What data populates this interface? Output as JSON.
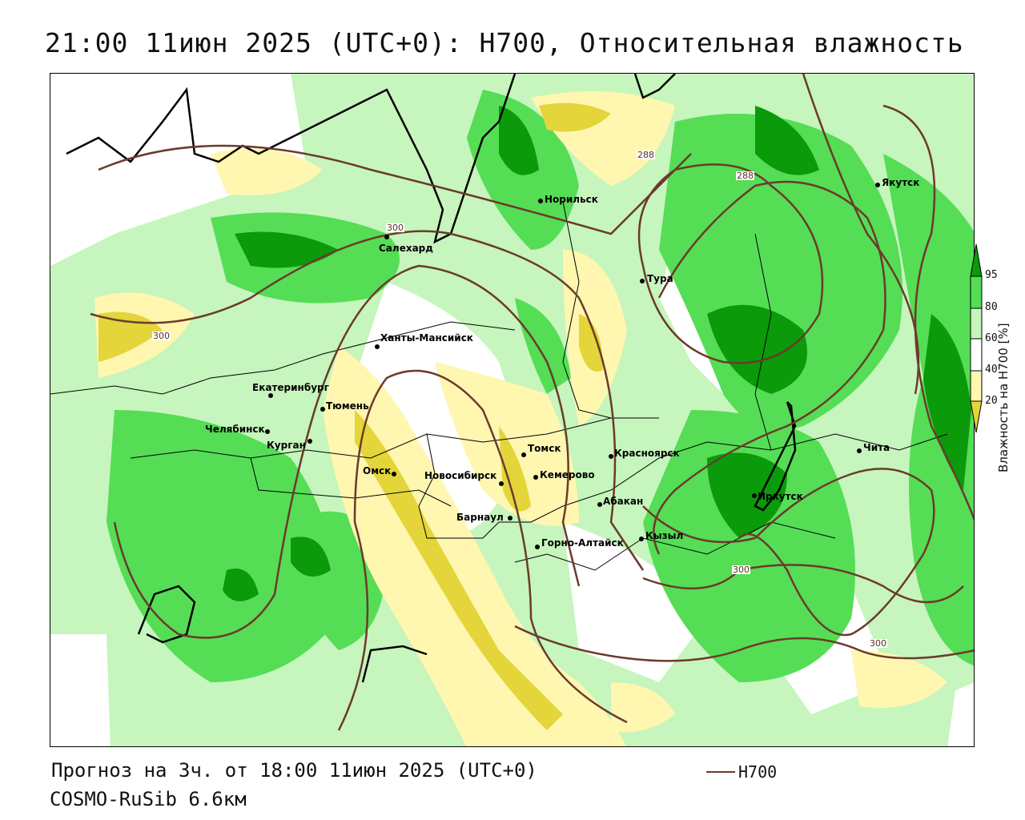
{
  "title": "21:00 11июн 2025 (UTC+0): H700, Относительная влажность",
  "cities": [
    "Салехард",
    "Норильск",
    "Якутск",
    "Тура",
    "Ханты-Мансийск",
    "Екатеринбург",
    "Тюмень",
    "Челябинск",
    "Курган",
    "Омск",
    "Новосибирск",
    "Томск",
    "Кемерово",
    "Красноярск",
    "Барнаул",
    "Абакан",
    "Иркутск",
    "Чита",
    "Кызыл",
    "Горно-Алтайск"
  ],
  "contour_labels": [
    "288",
    "288",
    "300",
    "300",
    "300",
    "300"
  ],
  "legend": {
    "title": "Влажность на H700 [%]",
    "ticks": [
      "95",
      "80",
      "60",
      "40",
      "20"
    ],
    "colors": {
      "c95": "#0a9a0a",
      "c80": "#55dd55",
      "c60": "#c6f5bd",
      "c40": "#ffffff",
      "c20": "#fff6b0",
      "c0": "#e3d53a"
    }
  },
  "footer": {
    "forecast": "Прогноз на 3ч. от 18:00 11июн 2025 (UTC+0)",
    "model": "COSMO-RuSib 6.6км",
    "key_label": "H700"
  },
  "contour_color": "#6b3a2c"
}
